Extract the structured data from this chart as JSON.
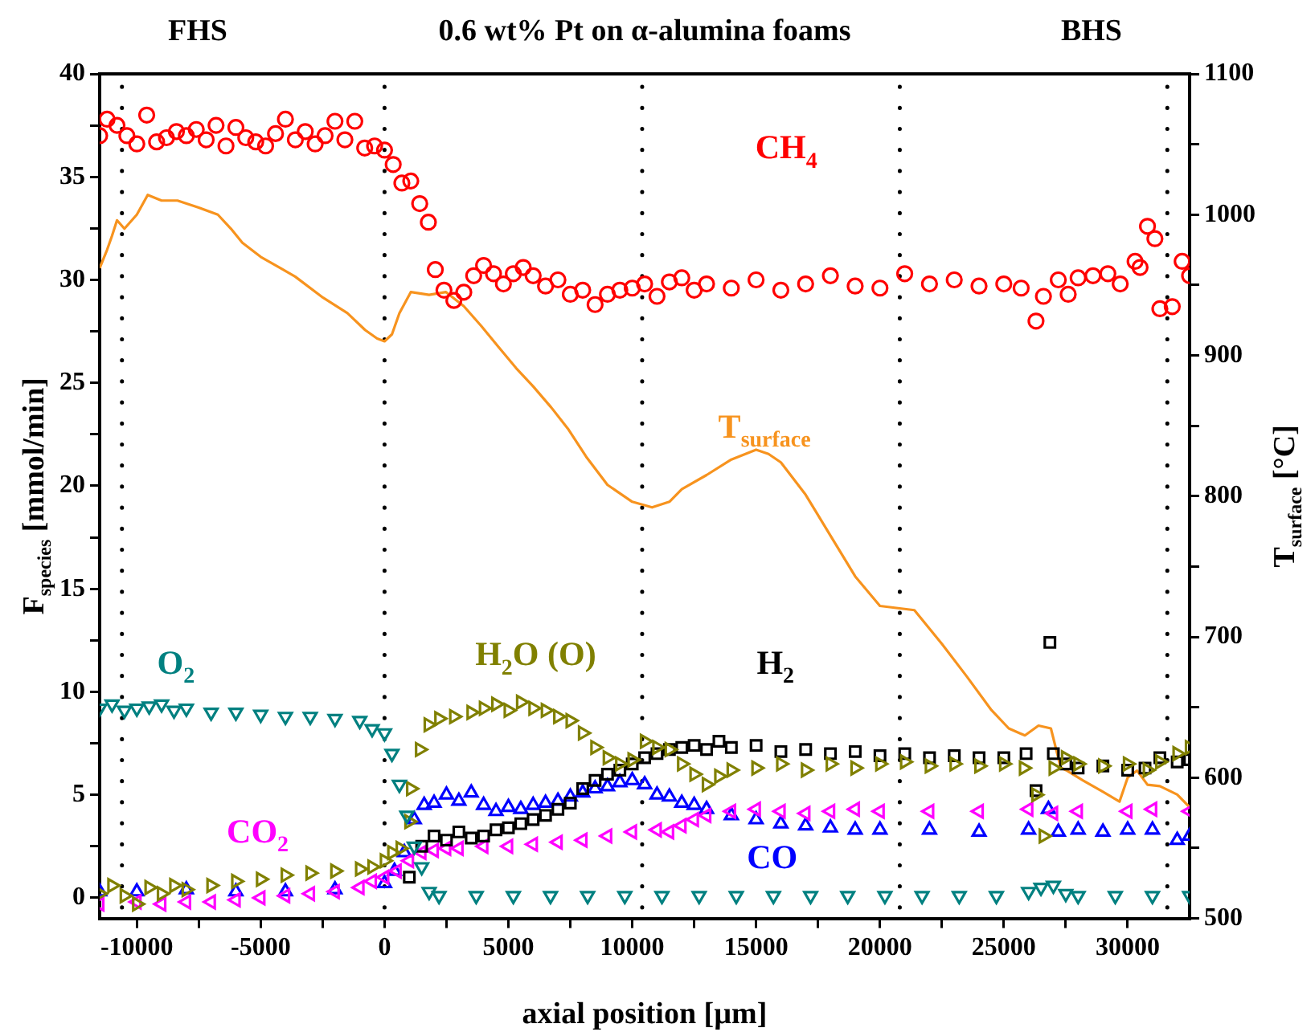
{
  "chart_data": {
    "type": "scatter",
    "title": "0.6 wt% Pt on α-alumina foams",
    "annotations": [
      "FHS",
      "BHS"
    ],
    "xlabel": "axial position [µm]",
    "ylabel": "F$_{species}$ [mmol/min]",
    "y2label": "T$_{surface}$ [°C]",
    "xlim": [
      -11500,
      32500
    ],
    "ylim": [
      -1,
      40
    ],
    "y2lim": [
      500,
      1100
    ],
    "xticks": [
      -10000,
      {
        "value": -7500,
        "label": null
      },
      -5000,
      {
        "value": -2500,
        "label": null
      },
      0,
      {
        "value": 2500,
        "label": null
      },
      5000,
      {
        "value": 7500,
        "label": null
      },
      10000,
      {
        "value": 12500,
        "label": null
      },
      15000,
      {
        "value": 17500,
        "label": null
      },
      20000,
      {
        "value": 22500,
        "label": null
      },
      25000,
      {
        "value": 27500,
        "label": null
      },
      30000
    ],
    "yticks": [
      0,
      {
        "value": 2.5,
        "label": null
      },
      5,
      {
        "value": 7.5,
        "label": null
      },
      10,
      {
        "value": 12.5,
        "label": null
      },
      15,
      {
        "value": 17.5,
        "label": null
      },
      20,
      {
        "value": 22.5,
        "label": null
      },
      25,
      {
        "value": 27.5,
        "label": null
      },
      30,
      {
        "value": 32.5,
        "label": null
      },
      35,
      {
        "value": 37.5,
        "label": null
      },
      40
    ],
    "y2ticks": [
      500,
      {
        "value": 550,
        "label": null
      },
      600,
      {
        "value": 650,
        "label": null
      },
      700,
      {
        "value": 750,
        "label": null
      },
      800,
      {
        "value": 850,
        "label": null
      },
      900,
      {
        "value": 950,
        "label": null
      },
      1000,
      {
        "value": 1050,
        "label": null
      },
      1100
    ],
    "grid": false,
    "legend": false,
    "ref_lines": [
      {
        "axis": "x",
        "value": -10600,
        "line_style": "dotted"
      },
      {
        "axis": "x",
        "value": 0,
        "line_style": "dotted"
      },
      {
        "axis": "x",
        "value": 10400,
        "line_style": "dotted"
      },
      {
        "axis": "x",
        "value": 20800,
        "line_style": "dotted"
      },
      {
        "axis": "x",
        "value": 31600,
        "line_style": "dotted"
      }
    ],
    "series": [
      {
        "name": "CH$_{4}$",
        "color": "#ff0000",
        "marker": "circle",
        "x": [
          -11500,
          -11200,
          -10800,
          -10400,
          -10000,
          -9600,
          -9200,
          -8800,
          -8400,
          -8000,
          -7600,
          -7200,
          -6800,
          -6400,
          -6000,
          -5600,
          -5200,
          -4800,
          -4400,
          -4000,
          -3600,
          -3200,
          -2800,
          -2400,
          -2000,
          -1600,
          -1200,
          -800,
          -400,
          0,
          350,
          700,
          1060,
          1420,
          1770,
          2050,
          2400,
          2800,
          3200,
          3600,
          4000,
          4400,
          4800,
          5200,
          5600,
          6000,
          6500,
          7000,
          7500,
          8000,
          8500,
          9000,
          9500,
          10000,
          10500,
          11000,
          11500,
          12000,
          12500,
          13000,
          14000,
          15000,
          16000,
          17000,
          18000,
          19000,
          20000,
          21000,
          22000,
          23000,
          24000,
          25000,
          25700,
          26300,
          26600,
          27200,
          27600,
          28000,
          28600,
          29200,
          29700,
          30300,
          30500,
          30800,
          31100,
          31300,
          31800,
          32200,
          32500
        ],
        "values": [
          37.0,
          37.8,
          37.5,
          37.0,
          36.6,
          38.0,
          36.7,
          36.9,
          37.2,
          37.0,
          37.3,
          36.8,
          37.5,
          36.5,
          37.4,
          36.9,
          36.7,
          36.5,
          37.1,
          37.8,
          36.8,
          37.2,
          36.6,
          37.0,
          37.7,
          36.8,
          37.7,
          36.4,
          36.5,
          36.3,
          35.6,
          34.7,
          34.8,
          33.7,
          32.8,
          30.5,
          29.5,
          29.0,
          29.4,
          30.2,
          30.7,
          30.3,
          29.8,
          30.3,
          30.6,
          30.2,
          29.7,
          30.0,
          29.3,
          29.5,
          28.8,
          29.3,
          29.5,
          29.6,
          29.8,
          29.2,
          29.9,
          30.1,
          29.5,
          29.8,
          29.6,
          30.0,
          29.5,
          29.8,
          30.2,
          29.7,
          29.6,
          30.3,
          29.8,
          30.0,
          29.7,
          29.8,
          29.6,
          28.0,
          29.2,
          30.0,
          29.3,
          30.1,
          30.2,
          30.3,
          29.8,
          30.9,
          30.6,
          32.6,
          32.0,
          28.6,
          28.7,
          30.9,
          30.2
        ]
      },
      {
        "name": "T$_{surface}$",
        "color": "#f7931e",
        "type": "line",
        "axis": "y2",
        "x": [
          -11500,
          -11200,
          -11000,
          -10800,
          -10500,
          -10000,
          -9560,
          -9000,
          -8360,
          -7500,
          -6730,
          -6200,
          -5740,
          -5000,
          -4200,
          -3610,
          -2480,
          -1500,
          -780,
          -300,
          0,
          300,
          600,
          1060,
          1800,
          2480,
          3200,
          3900,
          4600,
          5310,
          6000,
          6730,
          7400,
          8140,
          9000,
          10000,
          10800,
          11500,
          12000,
          13000,
          14000,
          15000,
          15500,
          16000,
          17000,
          18000,
          19000,
          20000,
          21390,
          22500,
          23500,
          24500,
          25200,
          25850,
          26400,
          26900,
          27300,
          27550,
          28200,
          29000,
          29670,
          30000,
          30380,
          30800,
          31300,
          32000,
          32500
        ],
        "values": [
          962,
          975,
          985,
          996,
          990,
          1000,
          1014,
          1010,
          1010,
          1005,
          1000,
          990,
          980,
          970,
          962,
          956,
          941,
          930,
          918,
          912,
          910,
          915,
          930,
          945,
          943,
          945,
          935,
          921,
          906,
          891,
          878,
          863,
          848,
          828,
          808,
          796,
          792,
          796,
          805,
          815,
          826,
          833,
          830,
          824,
          801,
          772,
          743,
          722,
          719,
          695,
          672,
          648,
          635,
          630,
          637,
          635,
          607,
          605,
          598,
          590,
          583,
          600,
          605,
          595,
          594,
          588,
          579
        ]
      },
      {
        "name": "O$_{2}$",
        "color": "#008080",
        "marker": "triangle",
        "x": [
          -11500,
          -11000,
          -10500,
          -10000,
          -9500,
          -9000,
          -8500,
          -8000,
          -7000,
          -6000,
          -5000,
          -4000,
          -3000,
          -2000,
          -1000,
          -500,
          0,
          300,
          600,
          900,
          1200,
          1500,
          1800,
          2200,
          3700,
          5200,
          6700,
          8200,
          9700,
          11200,
          12700,
          14200,
          15700,
          17200,
          18700,
          20200,
          21700,
          23200,
          24700,
          26000,
          26500,
          27000,
          27500,
          28000,
          29500,
          31000,
          32500
        ],
        "values": [
          9.2,
          9.4,
          9.1,
          9.2,
          9.3,
          9.4,
          9.1,
          9.2,
          9.0,
          9.0,
          8.9,
          8.8,
          8.8,
          8.7,
          8.6,
          8.2,
          8.0,
          7.0,
          5.5,
          4.0,
          2.5,
          1.5,
          0.3,
          0.1,
          0.1,
          0.1,
          0.1,
          0.1,
          0.1,
          0.1,
          0.1,
          0.1,
          0.1,
          0.1,
          0.1,
          0.1,
          0.1,
          0.1,
          0.1,
          0.3,
          0.5,
          0.6,
          0.2,
          0.1,
          0.1,
          0.1,
          0.1
        ]
      },
      {
        "name": "H$_{2}$O (O)",
        "color": "#808000",
        "marker": "triangle",
        "x": [
          -11500,
          -11000,
          -10500,
          -10000,
          -9500,
          -9000,
          -8500,
          -8000,
          -7000,
          -6000,
          -5000,
          -4000,
          -3000,
          -2000,
          -1000,
          -500,
          0,
          300,
          640,
          990,
          1060,
          1420,
          1770,
          2200,
          2800,
          3500,
          4000,
          4500,
          5000,
          5500,
          6000,
          6500,
          7000,
          7500,
          8000,
          8500,
          9000,
          9500,
          10000,
          10500,
          11000,
          11500,
          12000,
          12500,
          13000,
          13500,
          14000,
          15000,
          16000,
          17000,
          18000,
          19000,
          20000,
          21000,
          22000,
          23000,
          24000,
          25000,
          25800,
          26300,
          26600,
          27000,
          27500,
          28000,
          29000,
          30000,
          30800,
          31300,
          32000,
          32500
        ],
        "values": [
          0.2,
          0.6,
          0.1,
          -0.3,
          0.5,
          0.2,
          0.6,
          0.4,
          0.6,
          0.8,
          0.9,
          1.1,
          1.2,
          1.3,
          1.4,
          1.5,
          1.8,
          2.2,
          2.4,
          3.7,
          5.3,
          7.2,
          8.4,
          8.7,
          8.8,
          9.0,
          9.2,
          9.4,
          9.1,
          9.5,
          9.2,
          9.1,
          8.8,
          8.6,
          8.0,
          7.3,
          6.8,
          6.5,
          6.7,
          7.6,
          7.3,
          7.2,
          6.5,
          6.0,
          5.5,
          5.9,
          6.2,
          6.3,
          6.5,
          6.2,
          6.5,
          6.3,
          6.5,
          6.6,
          6.4,
          6.5,
          6.4,
          6.5,
          6.3,
          5.0,
          3.0,
          6.3,
          6.8,
          6.5,
          6.4,
          6.5,
          6.2,
          6.6,
          7.0,
          7.3
        ]
      },
      {
        "name": "H$_{2}$",
        "color": "#000000",
        "marker": "square",
        "x": [
          1000,
          1500,
          2000,
          2500,
          3000,
          3500,
          4000,
          4500,
          5000,
          5500,
          6000,
          6500,
          7000,
          7500,
          8000,
          8500,
          9000,
          9500,
          10000,
          10500,
          11000,
          11500,
          12000,
          12500,
          13000,
          13500,
          14000,
          15000,
          16000,
          17000,
          18000,
          19000,
          20000,
          21000,
          22000,
          23000,
          24000,
          25000,
          25900,
          26300,
          26860,
          27000,
          27500,
          28000,
          29000,
          30000,
          30700,
          31300,
          32000,
          32500
        ],
        "values": [
          1.0,
          2.5,
          3.0,
          2.8,
          3.2,
          2.9,
          3.0,
          3.3,
          3.4,
          3.6,
          3.8,
          4.0,
          4.3,
          4.6,
          5.3,
          5.7,
          6.0,
          6.2,
          6.5,
          6.8,
          7.0,
          7.2,
          7.3,
          7.4,
          7.2,
          7.6,
          7.3,
          7.4,
          7.1,
          7.2,
          7.0,
          7.1,
          6.9,
          7.0,
          6.8,
          6.9,
          6.8,
          6.8,
          7.0,
          5.2,
          12.4,
          7.0,
          6.5,
          6.3,
          6.4,
          6.2,
          6.3,
          6.8,
          6.6,
          6.7
        ]
      },
      {
        "name": "CO$_{2}$",
        "color": "#ff00ff",
        "marker": "triangle",
        "x": [
          -11500,
          -10000,
          -9000,
          -8000,
          -7000,
          -6000,
          -5000,
          -4000,
          -3000,
          -2000,
          -1000,
          -500,
          0,
          500,
          1000,
          1500,
          2000,
          2500,
          3000,
          4000,
          5000,
          6000,
          7000,
          8000,
          9000,
          10000,
          11000,
          11500,
          12000,
          12500,
          13000,
          14000,
          15000,
          16000,
          17000,
          18000,
          19000,
          20000,
          22000,
          24000,
          26000,
          27000,
          28000,
          30000,
          31000,
          32500
        ],
        "values": [
          -0.3,
          -0.2,
          -0.3,
          -0.2,
          -0.2,
          -0.1,
          0.0,
          0.1,
          0.2,
          0.3,
          0.5,
          0.8,
          1.0,
          1.3,
          1.8,
          2.2,
          2.3,
          2.4,
          2.4,
          2.5,
          2.5,
          2.6,
          2.7,
          2.8,
          3.0,
          3.2,
          3.3,
          3.2,
          3.5,
          3.8,
          4.0,
          4.2,
          4.3,
          4.2,
          4.1,
          4.2,
          4.3,
          4.2,
          4.2,
          4.2,
          4.3,
          4.1,
          4.2,
          4.2,
          4.3,
          4.2
        ]
      },
      {
        "name": "CO",
        "color": "#0000ff",
        "marker": "triangle",
        "x": [
          -11500,
          -10000,
          -8000,
          -6000,
          -4000,
          -2000,
          0,
          400,
          800,
          1200,
          1600,
          2000,
          2500,
          3000,
          3500,
          4000,
          4500,
          5000,
          5500,
          6000,
          6500,
          7000,
          7500,
          8000,
          8500,
          9000,
          9500,
          10000,
          10500,
          11000,
          11500,
          12000,
          12500,
          13000,
          14000,
          15000,
          16000,
          17000,
          18000,
          19000,
          20000,
          22000,
          24000,
          26000,
          26800,
          27200,
          28000,
          29000,
          30000,
          31000,
          32000,
          32500
        ],
        "values": [
          0.3,
          0.3,
          0.4,
          0.3,
          0.3,
          0.4,
          0.7,
          1.3,
          2.2,
          3.8,
          4.5,
          4.6,
          5.0,
          4.7,
          5.1,
          4.5,
          4.2,
          4.4,
          4.3,
          4.5,
          4.6,
          4.7,
          4.9,
          5.1,
          5.3,
          5.4,
          5.6,
          5.7,
          5.5,
          5.0,
          4.9,
          4.6,
          4.5,
          4.3,
          4.0,
          3.8,
          3.6,
          3.5,
          3.4,
          3.3,
          3.3,
          3.3,
          3.2,
          3.3,
          4.3,
          3.2,
          3.3,
          3.2,
          3.3,
          3.3,
          2.8,
          3.0
        ]
      }
    ]
  }
}
